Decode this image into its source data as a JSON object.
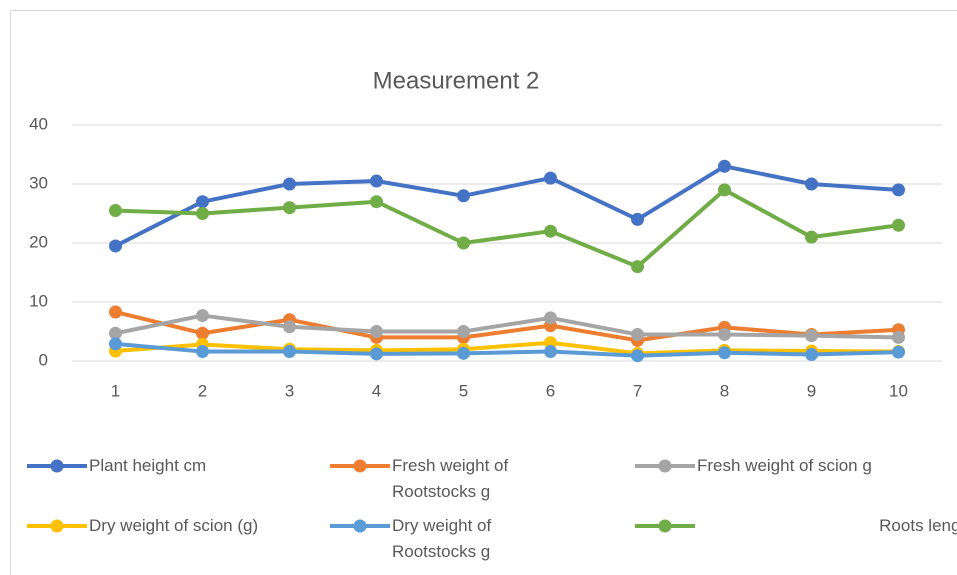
{
  "chart_data": {
    "type": "line",
    "title": "Measurement 2",
    "categories": [
      1,
      2,
      3,
      4,
      5,
      6,
      7,
      8,
      9,
      10
    ],
    "series": [
      {
        "name": "Plant height cm",
        "color": "#4472c4",
        "values": [
          19.5,
          27,
          30,
          30.5,
          28,
          31,
          24,
          33,
          30,
          29
        ]
      },
      {
        "name": "Fresh weight of Rootstocks g",
        "color": "#ed7d31",
        "values": [
          8.3,
          4.7,
          7,
          4,
          4,
          6,
          3.5,
          5.7,
          4.5,
          5.3
        ]
      },
      {
        "name": "Fresh weight of scion g",
        "color": "#a5a5a5",
        "values": [
          4.7,
          7.7,
          5.8,
          5,
          5,
          7.3,
          4.5,
          4.5,
          4.3,
          4
        ]
      },
      {
        "name": "Dry weight of scion (g)",
        "color": "#ffc000",
        "values": [
          1.7,
          2.8,
          2,
          1.8,
          2,
          3.1,
          1.3,
          1.8,
          1.7,
          1.6
        ]
      },
      {
        "name": "Dry weight of Rootstocks g",
        "color": "#5b9bd5",
        "values": [
          2.9,
          1.6,
          1.6,
          1.2,
          1.3,
          1.6,
          0.9,
          1.4,
          1.1,
          1.5
        ]
      },
      {
        "name": "Roots length cm",
        "color": "#70ad47",
        "values": [
          25.5,
          25,
          26,
          27,
          20,
          22,
          16,
          29,
          21,
          23
        ]
      }
    ],
    "ylim": [
      0,
      40
    ],
    "yticks": [
      0,
      10,
      20,
      30,
      40
    ],
    "grid": true,
    "legend": "bottom"
  }
}
